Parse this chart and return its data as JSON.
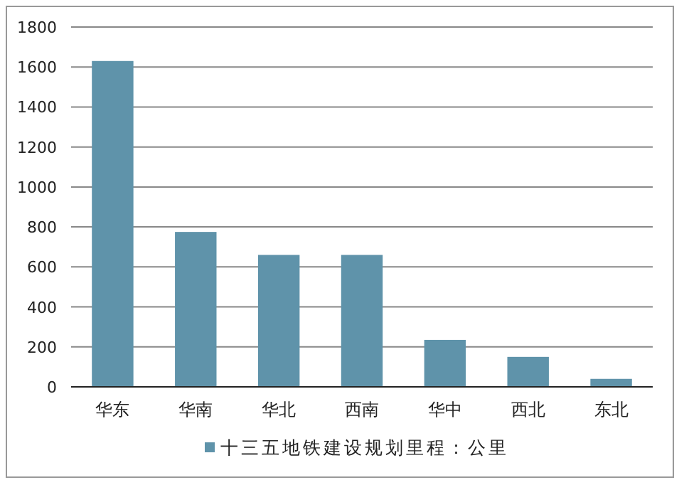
{
  "chart_data": {
    "type": "bar",
    "categories": [
      "华东",
      "华南",
      "华北",
      "西南",
      "华中",
      "西北",
      "东北"
    ],
    "series": [
      {
        "name": "十三五地铁建设规划里程：公里",
        "color": "#5f93aa",
        "values": [
          1630,
          775,
          660,
          660,
          235,
          150,
          40
        ]
      }
    ],
    "ylim": [
      0,
      1800
    ],
    "yticks": [
      0,
      200,
      400,
      600,
      800,
      1000,
      1200,
      1400,
      1600,
      1800
    ],
    "grid": "y",
    "legend": "bottom"
  }
}
